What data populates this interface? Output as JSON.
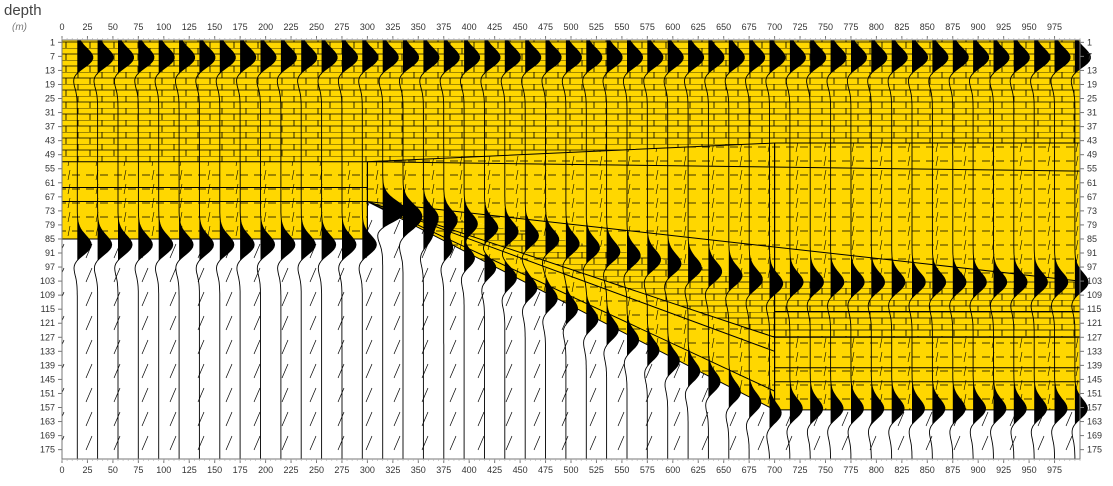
{
  "chart_data": {
    "type": "seismic-section",
    "ylabel": "depth",
    "yunit": "(m)",
    "xlim": [
      0,
      1000
    ],
    "ylim": [
      0,
      179
    ],
    "x_ticks": [
      0,
      25,
      50,
      75,
      100,
      125,
      150,
      175,
      200,
      225,
      250,
      275,
      300,
      325,
      350,
      375,
      400,
      425,
      450,
      475,
      500,
      525,
      550,
      575,
      600,
      625,
      650,
      675,
      700,
      725,
      750,
      775,
      800,
      825,
      850,
      875,
      900,
      925,
      950,
      975
    ],
    "y_ticks": [
      1,
      7,
      13,
      19,
      25,
      31,
      37,
      43,
      49,
      55,
      61,
      67,
      73,
      79,
      85,
      91,
      97,
      103,
      109,
      115,
      121,
      127,
      133,
      139,
      145,
      151,
      157,
      163,
      169,
      175
    ],
    "trace_spacing": 20,
    "trace_start": 15,
    "colors": {
      "layer_fill": "#FFD700",
      "trace_fill": "#000000",
      "background": "#ffffff",
      "pattern": "#000000"
    },
    "layers": [
      {
        "lithology": "limestone",
        "top": [
          [
            0,
            0
          ],
          [
            1000,
            0
          ]
        ],
        "bottom": [
          [
            0,
            52
          ],
          [
            300,
            52
          ],
          [
            700,
            44
          ],
          [
            1000,
            44
          ]
        ]
      },
      {
        "lithology": "shale",
        "top": [
          [
            0,
            52
          ],
          [
            300,
            52
          ],
          [
            700,
            44
          ],
          [
            1000,
            44
          ]
        ],
        "bottom": [
          [
            0,
            85
          ],
          [
            300,
            85
          ],
          [
            300,
            69
          ],
          [
            700,
            103
          ],
          [
            1000,
            103
          ]
        ]
      },
      {
        "lithology": "limestone",
        "top": [
          [
            300,
            69
          ],
          [
            700,
            103
          ],
          [
            1000,
            103
          ]
        ],
        "bottom": [
          [
            300,
            69
          ],
          [
            700,
            127
          ],
          [
            1000,
            127
          ]
        ]
      },
      {
        "lithology": "shale",
        "top": [
          [
            300,
            69
          ],
          [
            700,
            127
          ],
          [
            1000,
            127
          ]
        ],
        "bottom": [
          [
            300,
            69
          ],
          [
            700,
            158
          ],
          [
            1000,
            158
          ]
        ]
      }
    ],
    "interfaces": [
      [
        [
          0,
          52
        ],
        [
          300,
          52
        ],
        [
          700,
          44
        ],
        [
          1000,
          44
        ]
      ],
      [
        [
          300,
          52
        ],
        [
          1000,
          56
        ]
      ],
      [
        [
          0,
          63
        ],
        [
          300,
          63
        ]
      ],
      [
        [
          0,
          69
        ],
        [
          300,
          69
        ]
      ],
      [
        [
          0,
          85
        ],
        [
          300,
          85
        ]
      ],
      [
        [
          300,
          69
        ],
        [
          1000,
          103
        ]
      ],
      [
        [
          300,
          69
        ],
        [
          700,
          127
        ],
        [
          1000,
          127
        ]
      ],
      [
        [
          300,
          69
        ],
        [
          700,
          158
        ],
        [
          1000,
          158
        ]
      ],
      [
        [
          300,
          69
        ],
        [
          700,
          133
        ]
      ],
      [
        [
          300,
          69
        ],
        [
          700,
          150
        ]
      ],
      [
        [
          700,
          44
        ],
        [
          1000,
          44
        ]
      ],
      [
        [
          700,
          116
        ],
        [
          1000,
          116
        ]
      ],
      [
        [
          700,
          140
        ],
        [
          1000,
          140
        ]
      ],
      [
        [
          700,
          146
        ],
        [
          1000,
          146
        ]
      ]
    ],
    "faults": [
      [
        [
          300,
          52
        ],
        [
          300,
          85
        ]
      ],
      [
        [
          700,
          44
        ],
        [
          700,
          158
        ]
      ]
    ]
  }
}
